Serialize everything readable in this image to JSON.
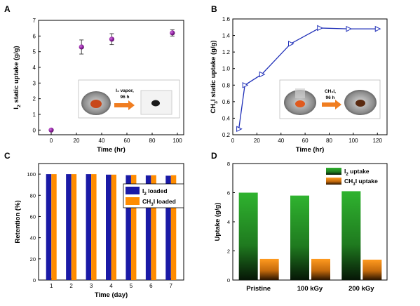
{
  "panels": [
    {
      "id": "A",
      "type": "scatter",
      "panel_label": "A",
      "xlabel": "Time (hr)",
      "ylabel_parts": [
        "I",
        "2",
        " static uptake (g/g)"
      ],
      "xlim": [
        -10,
        105
      ],
      "ylim": [
        -0.3,
        7
      ],
      "xticks": [
        0,
        20,
        40,
        60,
        80,
        100
      ],
      "yticks": [
        0,
        1,
        2,
        3,
        4,
        5,
        6,
        7
      ],
      "point_color": "#8B1E9C",
      "points": [
        {
          "x": 0,
          "y": 0.0,
          "err": 0
        },
        {
          "x": 24,
          "y": 5.3,
          "err": 0.45
        },
        {
          "x": 48,
          "y": 5.8,
          "err": 0.35
        },
        {
          "x": 96,
          "y": 6.2,
          "err": 0.2
        }
      ],
      "inset": {
        "label_line1": "I₂ vapor,",
        "label_line2": "96 h"
      }
    },
    {
      "id": "B",
      "type": "line",
      "panel_label": "B",
      "xlabel": "Time (hr)",
      "ylabel_parts": [
        "CH",
        "3",
        "I static uptake (g/g)"
      ],
      "xlim": [
        0,
        128
      ],
      "ylim": [
        0.2,
        1.6
      ],
      "xticks": [
        0,
        20,
        40,
        60,
        80,
        100,
        120
      ],
      "yticks": [
        0.2,
        0.4,
        0.6,
        0.8,
        1.0,
        1.2,
        1.4,
        1.6
      ],
      "ytick_labels": [
        "0.2",
        "0.4",
        "0.6",
        "0.8",
        "1.0",
        "1.2",
        "1.4",
        "1.6"
      ],
      "line_color": "#1F2FB8",
      "x": [
        5,
        10,
        24,
        48,
        72,
        96,
        120
      ],
      "y": [
        0.27,
        0.8,
        0.93,
        1.3,
        1.49,
        1.48,
        1.48
      ],
      "inset": {
        "label_line1": "CH₃I,",
        "label_line2": "96 h"
      }
    },
    {
      "id": "C",
      "type": "bar",
      "panel_label": "C",
      "xlabel": "Time (day)",
      "ylabel": "Retention (%)",
      "categories": [
        "1",
        "2",
        "3",
        "4",
        "5",
        "6",
        "7"
      ],
      "ylim": [
        0,
        110
      ],
      "yticks": [
        0,
        20,
        40,
        60,
        80,
        100
      ],
      "series": [
        {
          "name_parts": [
            "I",
            "2",
            " loaded"
          ],
          "color": "#1A1AA6",
          "values": [
            100,
            100,
            100,
            99.5,
            99,
            98.8,
            98.5
          ]
        },
        {
          "name_parts": [
            "CH",
            "3",
            "I loaded"
          ],
          "color": "#FF8C00",
          "values": [
            100,
            100,
            100,
            99.5,
            99.3,
            99,
            99
          ]
        }
      ],
      "legend_position": "right"
    },
    {
      "id": "D",
      "type": "bar",
      "panel_label": "D",
      "ylabel": "Uptake (g/g)",
      "categories": [
        "Pristine",
        "100 kGy",
        "200 kGy"
      ],
      "ylim": [
        0,
        8
      ],
      "yticks": [
        0,
        2,
        4,
        6,
        8
      ],
      "series": [
        {
          "name_parts": [
            "I",
            "2",
            " uptake"
          ],
          "color": "#2E9E2E",
          "values": [
            6.0,
            5.8,
            6.1
          ]
        },
        {
          "name_parts": [
            "CH",
            "3",
            "I uptake"
          ],
          "color": "#FF8C1A",
          "values": [
            1.45,
            1.45,
            1.4
          ]
        }
      ],
      "legend_position": "top-right"
    }
  ]
}
